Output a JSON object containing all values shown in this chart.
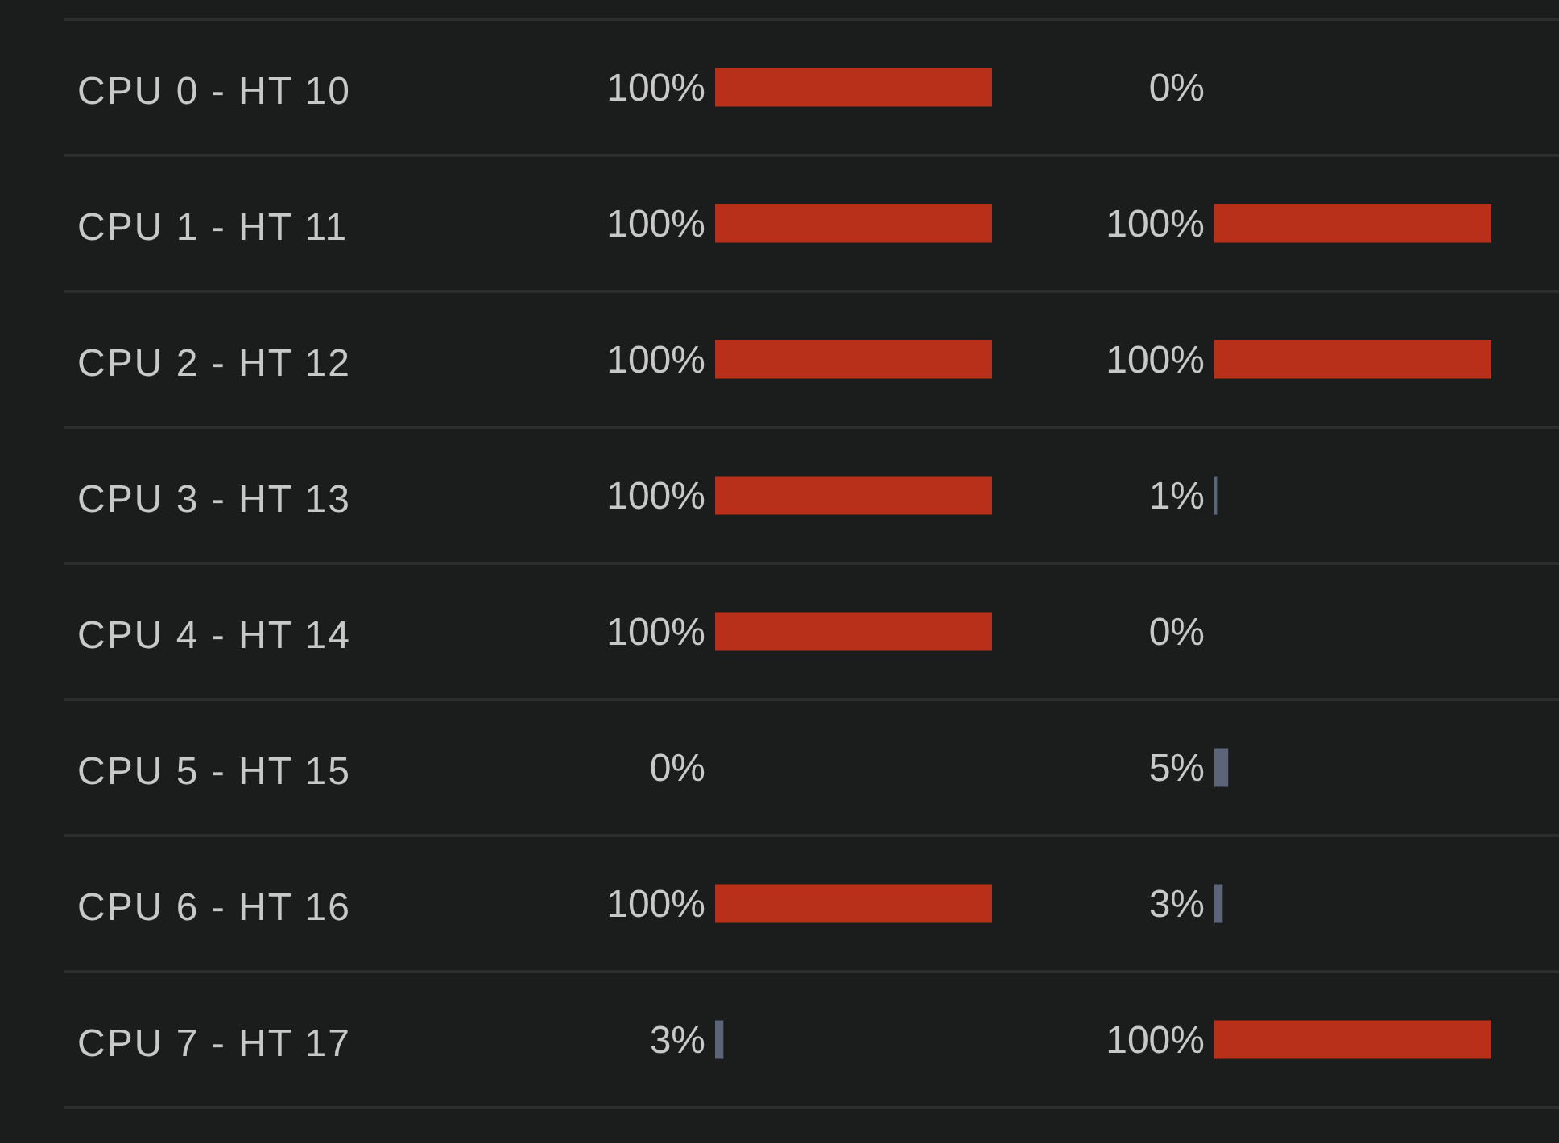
{
  "chart_data": [
    {
      "type": "bar",
      "orientation": "horizontal",
      "categories": [
        "CPU 0 - HT 10",
        "CPU 1 - HT 11",
        "CPU 2 - HT 12",
        "CPU 3 - HT 13",
        "CPU 4 - HT 14",
        "CPU 5 - HT 15",
        "CPU 6 - HT 16",
        "CPU 7 - HT 17"
      ],
      "values": [
        100,
        100,
        100,
        100,
        100,
        0,
        100,
        3
      ],
      "value_labels": [
        "100%",
        "100%",
        "100%",
        "100%",
        "100%",
        "0%",
        "100%",
        "3%"
      ],
      "colors": [
        "#b9301a",
        "#b9301a",
        "#b9301a",
        "#b9301a",
        "#b9301a",
        "#5b6577",
        "#b9301a",
        "#5b6577"
      ],
      "xlim": [
        0,
        100
      ]
    },
    {
      "type": "bar",
      "orientation": "horizontal",
      "categories": [
        null,
        null,
        null,
        null,
        null,
        null,
        null,
        null
      ],
      "values": [
        0,
        100,
        100,
        1,
        0,
        5,
        3,
        100
      ],
      "value_labels": [
        "0%",
        "100%",
        "100%",
        "1%",
        "0%",
        "5%",
        "3%",
        "100%"
      ],
      "colors": [
        "#5b6577",
        "#b9301a",
        "#b9301a",
        "#5b6577",
        "#5b6577",
        "#5b6577",
        "#5b6577",
        "#b9301a"
      ],
      "xlim": [
        0,
        100
      ]
    }
  ]
}
